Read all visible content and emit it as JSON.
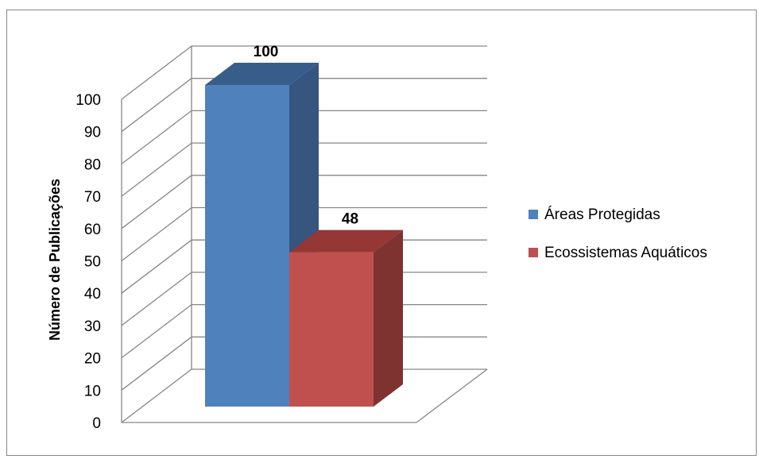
{
  "chart_data": {
    "type": "bar",
    "title": "",
    "xlabel": "",
    "ylabel": "Número de Publicações",
    "ylim": [
      0,
      100
    ],
    "yticks": [
      0,
      10,
      20,
      30,
      40,
      50,
      60,
      70,
      80,
      90,
      100
    ],
    "grid": true,
    "three_d": true,
    "legend_position": "right",
    "series": [
      {
        "name": "Áreas Protegidas",
        "value": 100,
        "label": "100",
        "color": "#4f81bd",
        "top_color": "#385d8a",
        "side_color": "#36557f"
      },
      {
        "name": "Ecossistemas Aquáticos",
        "value": 48,
        "label": "48",
        "color": "#c0504d",
        "top_color": "#953735",
        "side_color": "#7e3331"
      }
    ]
  }
}
